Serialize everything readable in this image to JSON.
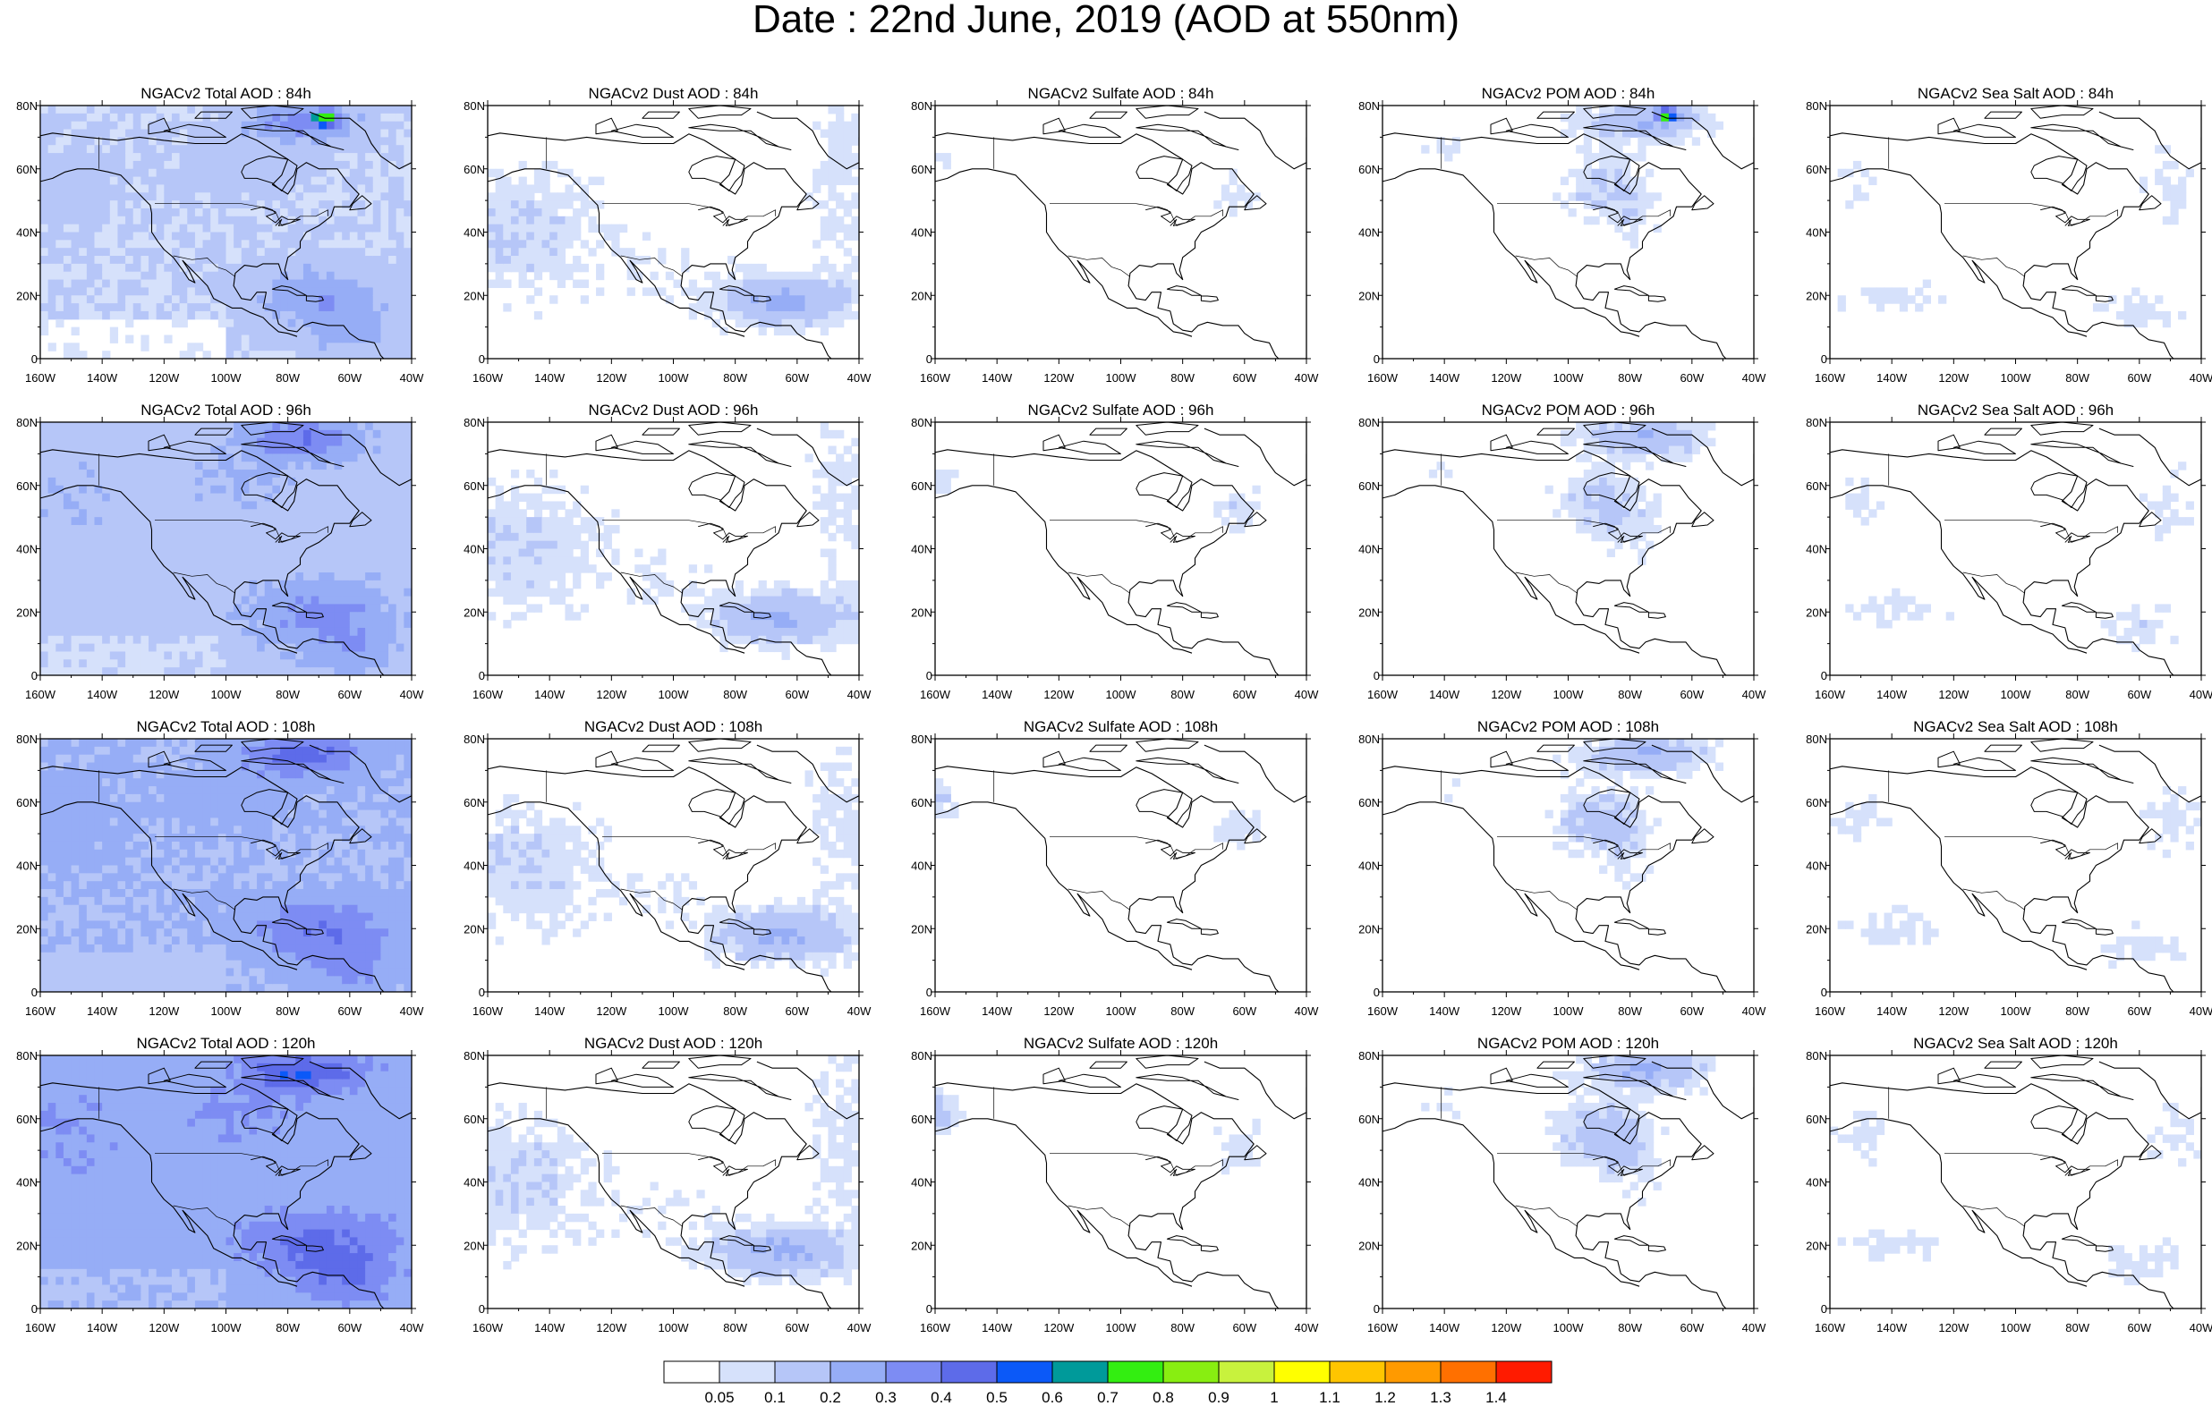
{
  "title": "Date : 22nd June, 2019 (AOD at 550nm)",
  "axes": {
    "lat_ticks": [
      "80N",
      "60N",
      "40N",
      "20N",
      "0"
    ],
    "lon_ticks": [
      "160W",
      "140W",
      "120W",
      "100W",
      "80W",
      "60W",
      "40W"
    ]
  },
  "region": {
    "lon_range": [
      -160,
      -40
    ],
    "lat_range": [
      0,
      80
    ]
  },
  "panels": [
    [
      "NGACv2 Total AOD : 84h",
      "NGACv2 Dust AOD : 84h",
      "NGACv2 Sulfate AOD : 84h",
      "NGACv2 POM AOD : 84h",
      "NGACv2 Sea Salt AOD : 84h"
    ],
    [
      "NGACv2 Total AOD : 96h",
      "NGACv2 Dust AOD : 96h",
      "NGACv2 Sulfate AOD : 96h",
      "NGACv2 POM AOD : 96h",
      "NGACv2 Sea Salt AOD : 96h"
    ],
    [
      "NGACv2 Total AOD : 108h",
      "NGACv2 Dust AOD : 108h",
      "NGACv2 Sulfate AOD : 108h",
      "NGACv2 POM AOD : 108h",
      "NGACv2 Sea Salt AOD : 108h"
    ],
    [
      "NGACv2 Total AOD : 120h",
      "NGACv2 Dust AOD : 120h",
      "NGACv2 Sulfate AOD : 120h",
      "NGACv2 POM AOD : 120h",
      "NGACv2 Sea Salt  AOD : 120h"
    ]
  ],
  "colorbar": {
    "labels": [
      "0.05",
      "0.1",
      "0.2",
      "0.3",
      "0.4",
      "0.5",
      "0.6",
      "0.7",
      "0.8",
      "0.9",
      "1",
      "1.1",
      "1.2",
      "1.3",
      "1.4"
    ],
    "colors": [
      "#ffffff",
      "#d6e1fb",
      "#b6c6f8",
      "#96adf6",
      "#7d8cf3",
      "#5d6be9",
      "#0b59f8",
      "#009a9a",
      "#33ee11",
      "#88ee11",
      "#c8f23d",
      "#ffff00",
      "#ffc500",
      "#ff9a00",
      "#ff7000",
      "#ff1b00"
    ]
  }
}
